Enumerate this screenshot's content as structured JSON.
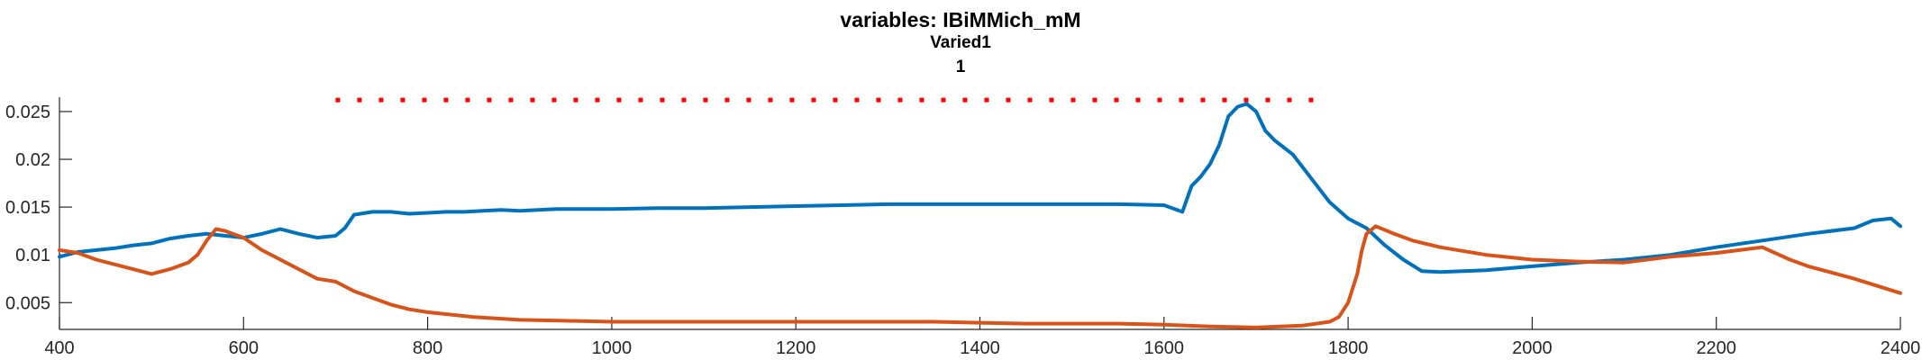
{
  "chart_data": {
    "type": "line",
    "title": "variables: IBiMMich_mM",
    "subtitle": "Varied1",
    "subtitle2": "1",
    "xlim": [
      400,
      2400
    ],
    "ylim": [
      0.0022,
      0.0265
    ],
    "xticks": [
      400,
      600,
      800,
      1000,
      1200,
      1400,
      1600,
      1800,
      2000,
      2200,
      2400
    ],
    "xtick_labels": [
      "400",
      "600",
      "800",
      "1000",
      "1200",
      "1400",
      "1600",
      "1800",
      "2000",
      "2200",
      "2400"
    ],
    "yticks": [
      0.005,
      0.01,
      0.015,
      0.02,
      0.025
    ],
    "ytick_labels": [
      "0.005",
      "0.01",
      "0.015",
      "0.02",
      "0.025"
    ],
    "grid": false,
    "legend": "none",
    "reference_line": {
      "style": "dotted",
      "color": "#FF0000",
      "y": 0.0262,
      "x": [
        700,
        1780
      ]
    },
    "series": [
      {
        "color": "#0072BD",
        "x": [
          400,
          420,
          440,
          460,
          480,
          500,
          520,
          540,
          560,
          580,
          600,
          620,
          640,
          660,
          680,
          700,
          710,
          720,
          740,
          760,
          780,
          800,
          820,
          840,
          860,
          880,
          900,
          920,
          940,
          960,
          980,
          1000,
          1050,
          1100,
          1150,
          1200,
          1250,
          1300,
          1350,
          1400,
          1450,
          1500,
          1550,
          1600,
          1620,
          1630,
          1640,
          1650,
          1660,
          1670,
          1680,
          1690,
          1700,
          1710,
          1720,
          1740,
          1760,
          1780,
          1800,
          1820,
          1840,
          1860,
          1880,
          1900,
          1950,
          2000,
          2050,
          2100,
          2150,
          2200,
          2250,
          2300,
          2350,
          2370,
          2390,
          2400
        ],
        "y": [
          0.0098,
          0.0103,
          0.0105,
          0.0107,
          0.011,
          0.0112,
          0.0117,
          0.012,
          0.0122,
          0.012,
          0.0118,
          0.0122,
          0.0127,
          0.0122,
          0.0118,
          0.012,
          0.0128,
          0.0142,
          0.0145,
          0.0145,
          0.0143,
          0.0144,
          0.0145,
          0.0145,
          0.0146,
          0.0147,
          0.0146,
          0.0147,
          0.0148,
          0.0148,
          0.0148,
          0.0148,
          0.0149,
          0.0149,
          0.015,
          0.0151,
          0.0152,
          0.0153,
          0.0153,
          0.0153,
          0.0153,
          0.0153,
          0.0153,
          0.0152,
          0.0145,
          0.0172,
          0.0182,
          0.0195,
          0.0215,
          0.0245,
          0.0255,
          0.0258,
          0.025,
          0.023,
          0.022,
          0.0205,
          0.018,
          0.0155,
          0.0138,
          0.0128,
          0.011,
          0.0095,
          0.0083,
          0.0082,
          0.0084,
          0.0088,
          0.0092,
          0.0095,
          0.01,
          0.0108,
          0.0115,
          0.0122,
          0.0128,
          0.0136,
          0.0138,
          0.013
        ]
      },
      {
        "color": "#D95319",
        "x": [
          400,
          420,
          440,
          460,
          480,
          500,
          520,
          540,
          550,
          560,
          570,
          580,
          600,
          620,
          640,
          660,
          680,
          700,
          720,
          740,
          760,
          780,
          800,
          850,
          900,
          950,
          1000,
          1050,
          1100,
          1150,
          1200,
          1250,
          1300,
          1350,
          1400,
          1450,
          1500,
          1550,
          1600,
          1650,
          1700,
          1750,
          1780,
          1790,
          1800,
          1810,
          1815,
          1820,
          1830,
          1850,
          1870,
          1900,
          1950,
          2000,
          2050,
          2100,
          2150,
          2200,
          2250,
          2280,
          2300,
          2350,
          2400
        ],
        "y": [
          0.0105,
          0.0102,
          0.0095,
          0.009,
          0.0085,
          0.008,
          0.0085,
          0.0092,
          0.01,
          0.0115,
          0.0127,
          0.0125,
          0.0118,
          0.0105,
          0.0095,
          0.0085,
          0.0075,
          0.0072,
          0.0062,
          0.0055,
          0.0048,
          0.0043,
          0.004,
          0.0035,
          0.0032,
          0.0031,
          0.003,
          0.003,
          0.003,
          0.003,
          0.003,
          0.003,
          0.003,
          0.003,
          0.0029,
          0.0028,
          0.0028,
          0.0028,
          0.0027,
          0.0025,
          0.0024,
          0.0026,
          0.003,
          0.0035,
          0.005,
          0.008,
          0.0105,
          0.0122,
          0.013,
          0.0122,
          0.0115,
          0.0108,
          0.01,
          0.0095,
          0.0093,
          0.0092,
          0.0098,
          0.0102,
          0.0108,
          0.0095,
          0.0088,
          0.0075,
          0.006
        ]
      }
    ]
  }
}
